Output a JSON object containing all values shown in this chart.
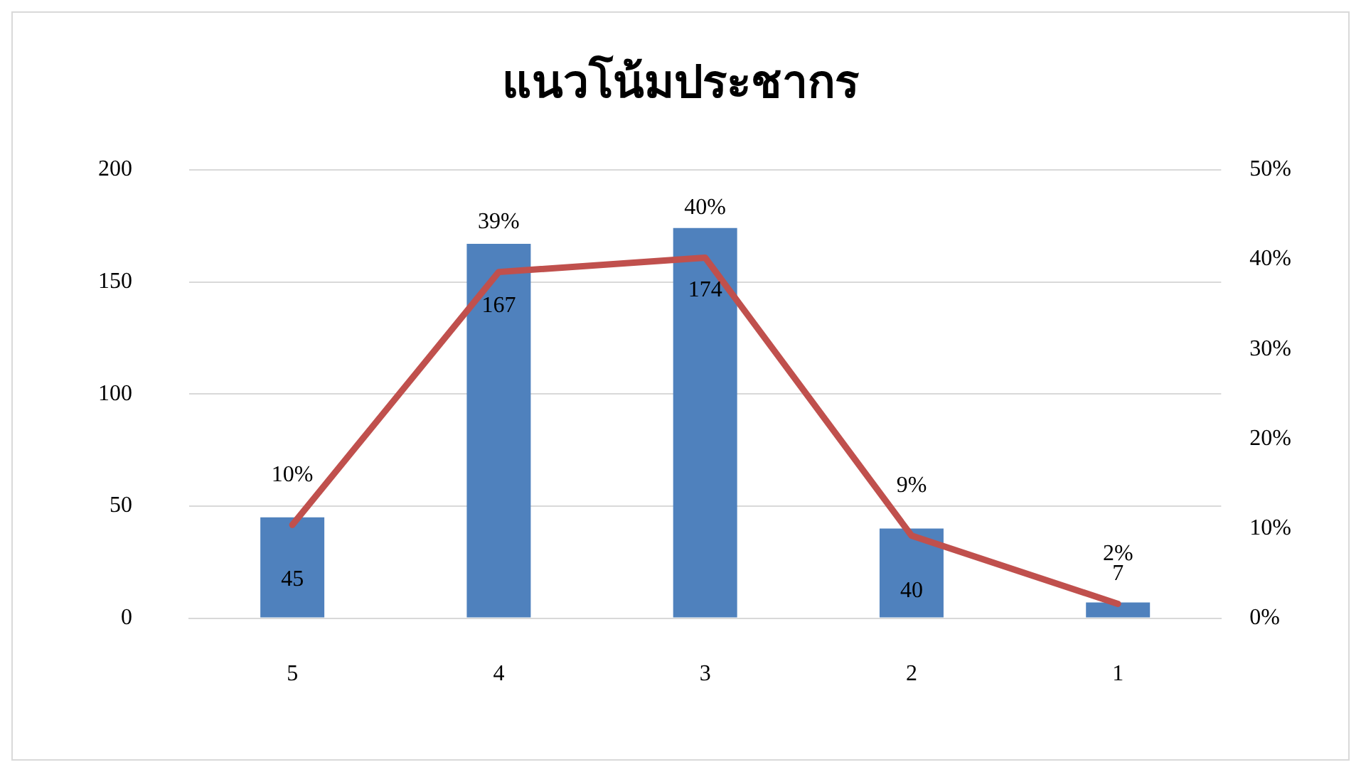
{
  "chart_data": {
    "type": "bar",
    "title": "แนวโน้มประชากร",
    "categories": [
      "5",
      "4",
      "3",
      "2",
      "1"
    ],
    "series": [
      {
        "color": "#4f81bd",
        "values": [
          45,
          167,
          174,
          40,
          7
        ],
        "value_labels": [
          "45",
          "167",
          "174",
          "40",
          "7"
        ]
      },
      {
        "type": "line",
        "axis": "y2",
        "color": "#c0504d",
        "values": [
          10.4,
          38.6,
          40.2,
          9.2,
          1.6
        ],
        "value_labels": [
          "10%",
          "39%",
          "40%",
          "9%",
          "2%"
        ]
      }
    ],
    "ylim": [
      0,
      200
    ],
    "yticks": [
      0,
      50,
      100,
      150,
      200
    ],
    "y2lim": [
      0,
      50
    ],
    "y2ticks": [
      {
        "value": 0,
        "label": "0%"
      },
      {
        "value": 10,
        "label": "10%"
      },
      {
        "value": 20,
        "label": "20%"
      },
      {
        "value": 30,
        "label": "30%"
      },
      {
        "value": 40,
        "label": "40%"
      },
      {
        "value": 50,
        "label": "50%"
      }
    ],
    "grid": "y",
    "legend": false,
    "marker": "none",
    "line_style": "solid"
  }
}
